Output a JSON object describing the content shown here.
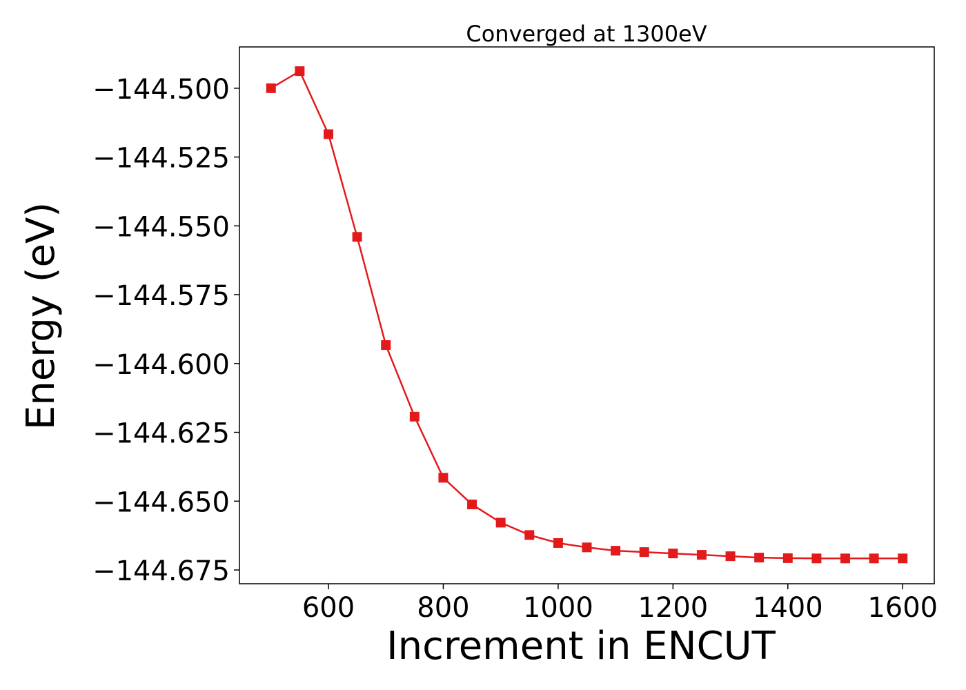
{
  "chart_data": {
    "type": "line",
    "title": "Converged at 1300eV",
    "xlabel": "Increment in ENCUT",
    "ylabel": "Energy (eV)",
    "xlim": [
      445,
      1655
    ],
    "ylim": [
      -144.68,
      -144.485
    ],
    "xticks": [
      600,
      800,
      1000,
      1200,
      1400,
      1600
    ],
    "xtick_labels": [
      "600",
      "800",
      "1000",
      "1200",
      "1400",
      "1600"
    ],
    "yticks": [
      -144.5,
      -144.525,
      -144.55,
      -144.575,
      -144.6,
      -144.625,
      -144.65,
      -144.675
    ],
    "ytick_labels": [
      "−144.500",
      "−144.525",
      "−144.550",
      "−144.575",
      "−144.600",
      "−144.625",
      "−144.650",
      "−144.675"
    ],
    "grid": false,
    "marker": "square",
    "color": "#e31a1c",
    "series": [
      {
        "x": [
          500,
          550,
          600,
          650,
          700,
          750,
          800,
          850,
          900,
          950,
          1000,
          1050,
          1100,
          1150,
          1200,
          1250,
          1300,
          1350,
          1400,
          1450,
          1500,
          1550,
          1600
        ],
        "values": [
          -144.5,
          -144.4938,
          -144.5167,
          -144.554,
          -144.5933,
          -144.6193,
          -144.6415,
          -144.6512,
          -144.6578,
          -144.6623,
          -144.6652,
          -144.6668,
          -144.668,
          -144.6685,
          -144.669,
          -144.6695,
          -144.67,
          -144.6705,
          -144.6707,
          -144.6708,
          -144.6708,
          -144.6708,
          -144.6708
        ]
      }
    ]
  }
}
